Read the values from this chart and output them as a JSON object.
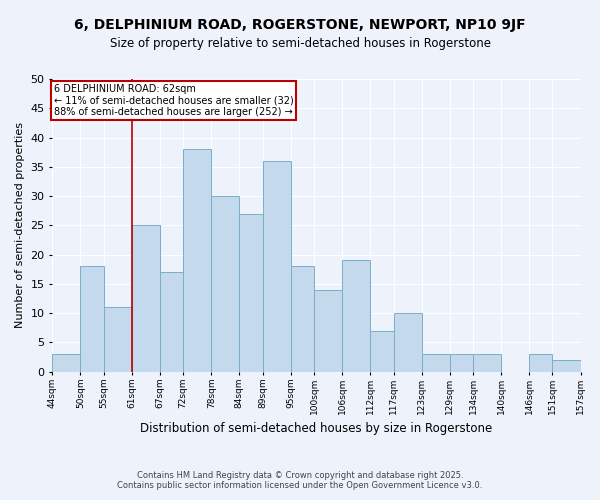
{
  "title": "6, DELPHINIUM ROAD, ROGERSTONE, NEWPORT, NP10 9JF",
  "subtitle": "Size of property relative to semi-detached houses in Rogerstone",
  "xlabel": "Distribution of semi-detached houses by size in Rogerstone",
  "ylabel": "Number of semi-detached properties",
  "bar_color": "#c5d9ec",
  "bar_edge_color": "#7aafc9",
  "background_color": "#eef2fa",
  "grid_color": "#ffffff",
  "vline_x": 61,
  "vline_color": "#bb0000",
  "annotation_title": "6 DELPHINIUM ROAD: 62sqm",
  "annotation_line1": "← 11% of semi-detached houses are smaller (32)",
  "annotation_line2": "88% of semi-detached houses are larger (252) →",
  "bin_edges": [
    44,
    50,
    55,
    61,
    67,
    72,
    78,
    84,
    89,
    95,
    100,
    106,
    112,
    117,
    123,
    129,
    134,
    140,
    146,
    151,
    157
  ],
  "bin_heights": [
    3,
    18,
    11,
    25,
    17,
    38,
    30,
    27,
    36,
    18,
    14,
    19,
    7,
    10,
    3,
    3,
    3,
    0,
    3,
    2
  ],
  "ylim": [
    0,
    50
  ],
  "yticks": [
    0,
    5,
    10,
    15,
    20,
    25,
    30,
    35,
    40,
    45,
    50
  ],
  "footer_line1": "Contains HM Land Registry data © Crown copyright and database right 2025.",
  "footer_line2": "Contains public sector information licensed under the Open Government Licence v3.0."
}
